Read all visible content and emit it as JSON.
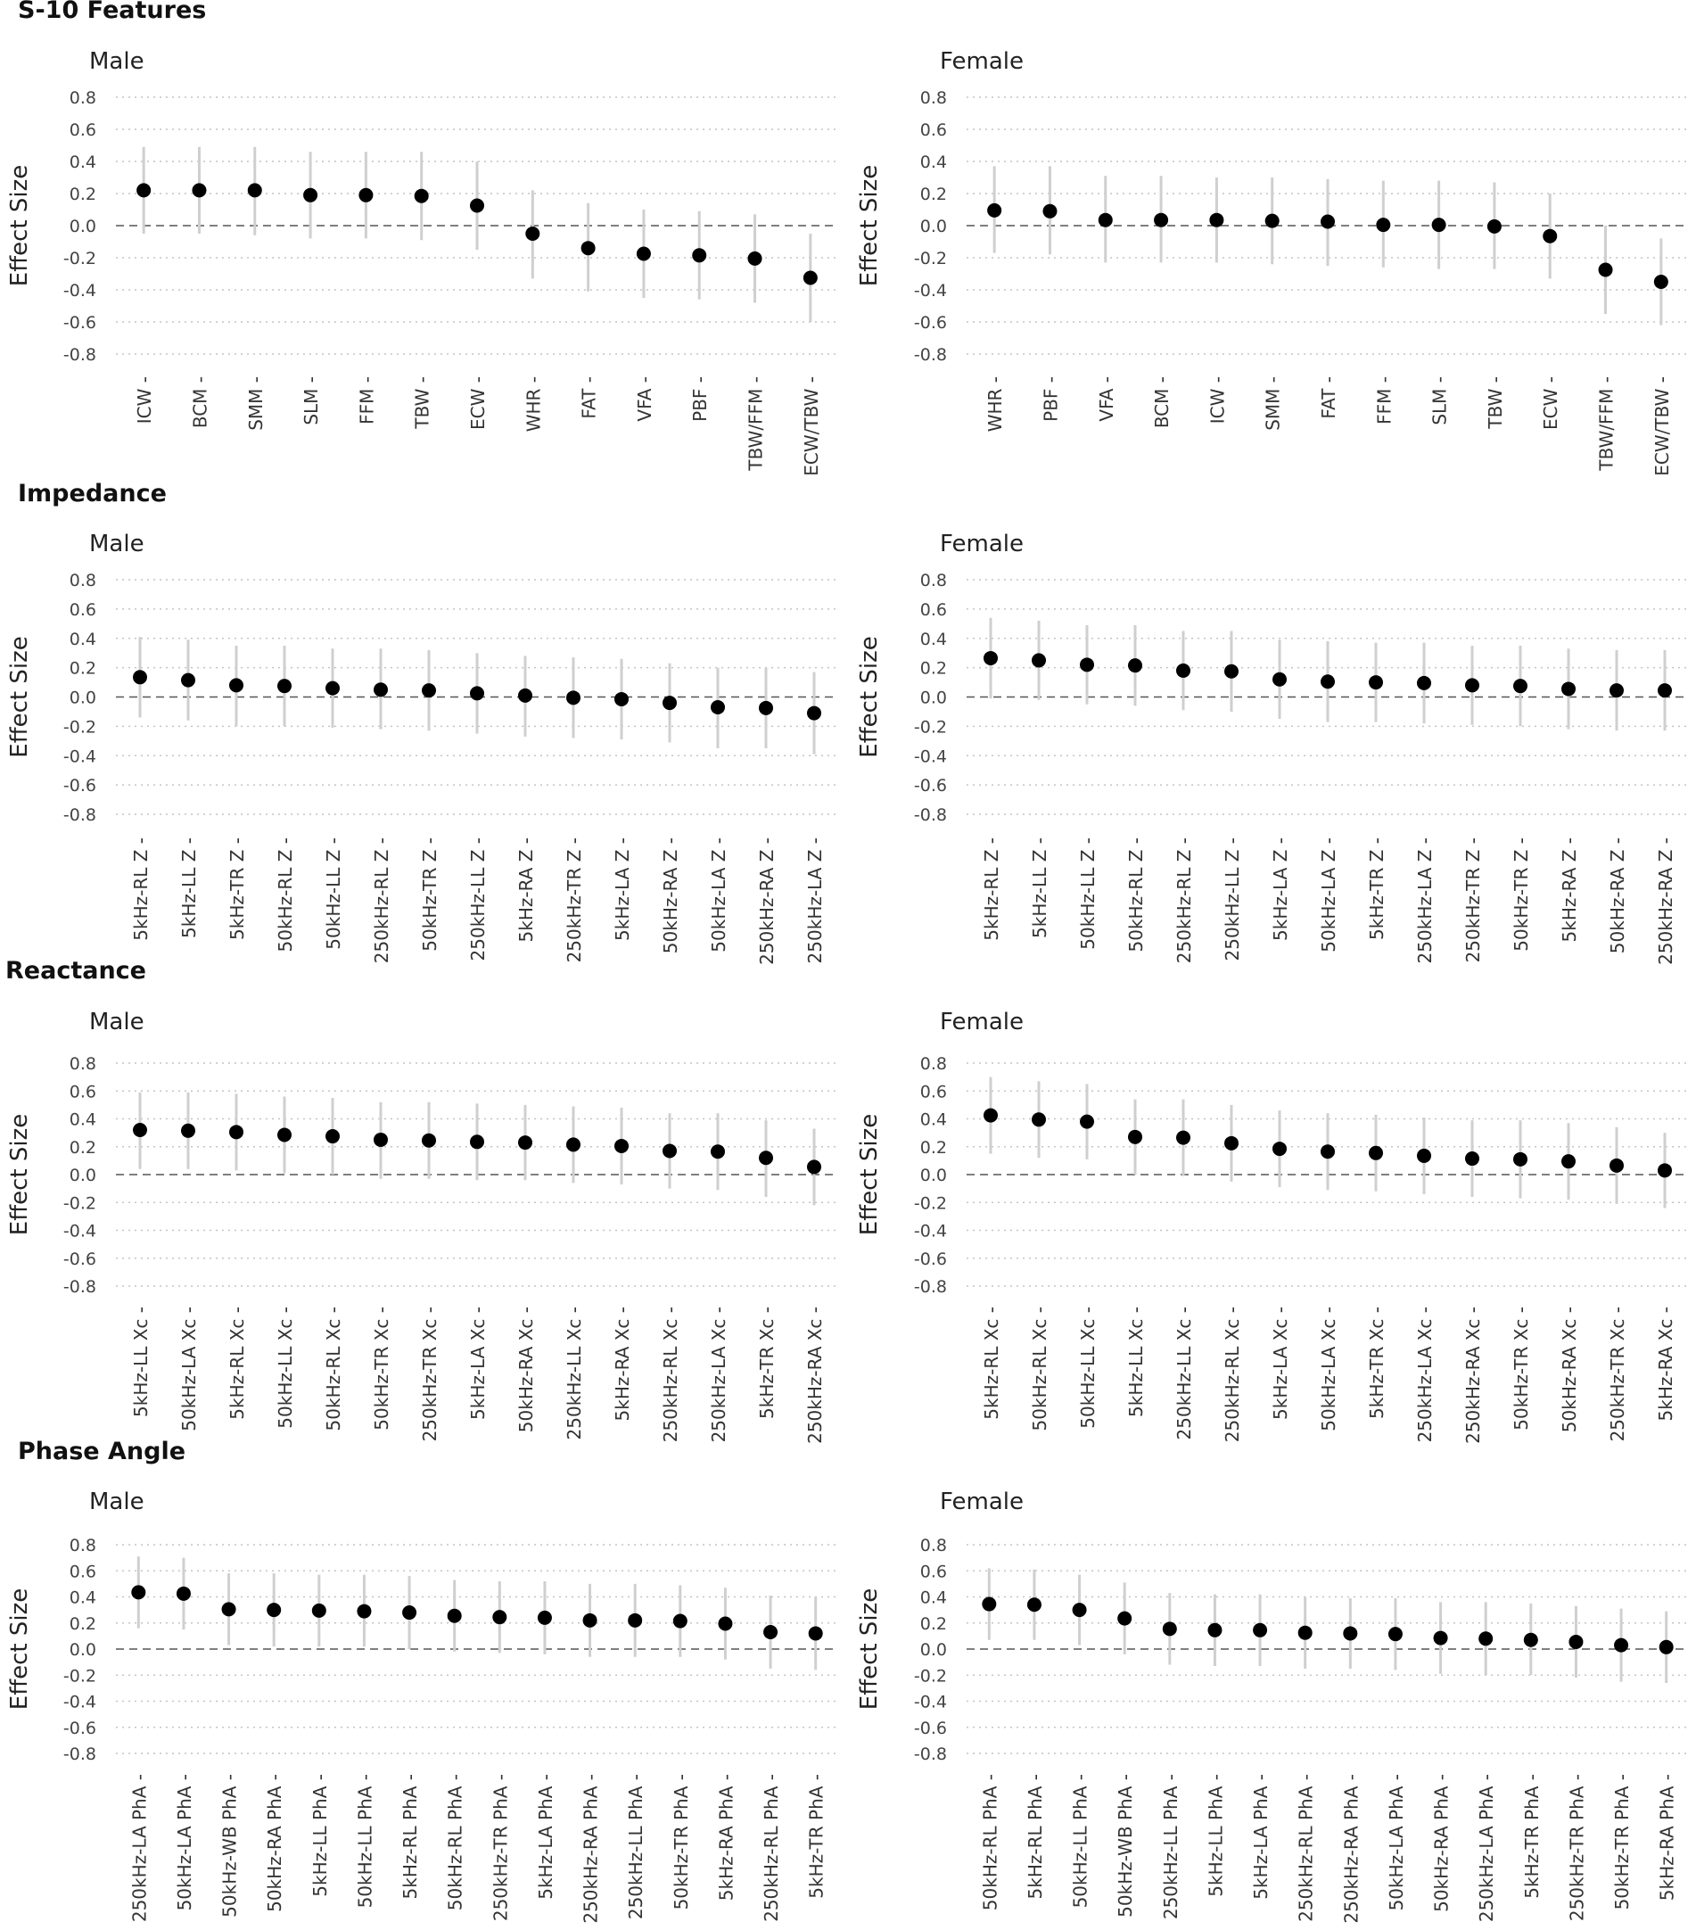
{
  "figure": {
    "sections": [
      {
        "title": "S-10 Features"
      },
      {
        "title": "Impedance"
      },
      {
        "title": "Reactance"
      },
      {
        "title": "Phase Angle"
      }
    ]
  },
  "chart_data": [
    {
      "type": "scatter",
      "section": "S-10 Features",
      "title": "Male",
      "ylabel": "Effect Size",
      "ylim": [
        -0.8,
        0.8
      ],
      "yticks": [
        0.8,
        0.6,
        0.4,
        0.2,
        0.0,
        -0.2,
        -0.4,
        -0.6,
        -0.8
      ],
      "grid": "dotted horizontal",
      "reference_line": 0,
      "categories": [
        "ICW",
        "BCM",
        "SMM",
        "SLM",
        "FFM",
        "TBW",
        "ECW",
        "WHR",
        "FAT",
        "VFA",
        "PBF",
        "TBW/FFM",
        "ECW/TBW"
      ],
      "values": [
        0.22,
        0.22,
        0.22,
        0.19,
        0.19,
        0.185,
        0.125,
        -0.05,
        -0.14,
        -0.175,
        -0.185,
        -0.205,
        -0.325
      ],
      "lower": [
        -0.05,
        -0.05,
        -0.06,
        -0.08,
        -0.08,
        -0.09,
        -0.15,
        -0.33,
        -0.41,
        -0.45,
        -0.46,
        -0.48,
        -0.6
      ],
      "upper": [
        0.49,
        0.49,
        0.49,
        0.46,
        0.46,
        0.46,
        0.4,
        0.22,
        0.14,
        0.1,
        0.09,
        0.07,
        -0.05
      ]
    },
    {
      "type": "scatter",
      "section": "S-10 Features",
      "title": "Female",
      "ylabel": "Effect Size",
      "ylim": [
        -0.8,
        0.8
      ],
      "yticks": [
        0.8,
        0.6,
        0.4,
        0.2,
        0.0,
        -0.2,
        -0.4,
        -0.6,
        -0.8
      ],
      "grid": "dotted horizontal",
      "reference_line": 0,
      "categories": [
        "WHR",
        "PBF",
        "VFA",
        "BCM",
        "ICW",
        "SMM",
        "FAT",
        "FFM",
        "SLM",
        "TBW",
        "ECW",
        "TBW/FFM",
        "ECW/TBW"
      ],
      "values": [
        0.095,
        0.09,
        0.035,
        0.035,
        0.035,
        0.03,
        0.025,
        0.005,
        0.005,
        -0.005,
        -0.065,
        -0.275,
        -0.35
      ],
      "lower": [
        -0.17,
        -0.18,
        -0.23,
        -0.23,
        -0.23,
        -0.24,
        -0.25,
        -0.26,
        -0.27,
        -0.27,
        -0.33,
        -0.55,
        -0.62
      ],
      "upper": [
        0.37,
        0.37,
        0.31,
        0.31,
        0.3,
        0.3,
        0.29,
        0.28,
        0.28,
        0.27,
        0.2,
        0.0,
        -0.08
      ]
    },
    {
      "type": "scatter",
      "section": "Impedance",
      "title": "Male",
      "ylabel": "Effect Size",
      "ylim": [
        -0.8,
        0.8
      ],
      "yticks": [
        0.8,
        0.6,
        0.4,
        0.2,
        0.0,
        -0.2,
        -0.4,
        -0.6,
        -0.8
      ],
      "grid": "dotted horizontal",
      "reference_line": 0,
      "categories": [
        "5kHz-RL Z",
        "5kHz-LL Z",
        "5kHz-TR Z",
        "50kHz-RL Z",
        "50kHz-LL Z",
        "250kHz-RL Z",
        "50kHz-TR Z",
        "250kHz-LL Z",
        "5kHz-RA Z",
        "250kHz-TR Z",
        "5kHz-LA Z",
        "50kHz-RA Z",
        "50kHz-LA Z",
        "250kHz-RA Z",
        "250kHz-LA Z"
      ],
      "values": [
        0.135,
        0.115,
        0.08,
        0.075,
        0.06,
        0.05,
        0.045,
        0.025,
        0.01,
        -0.005,
        -0.015,
        -0.04,
        -0.07,
        -0.075,
        -0.11
      ],
      "lower": [
        -0.14,
        -0.16,
        -0.2,
        -0.2,
        -0.21,
        -0.22,
        -0.23,
        -0.25,
        -0.27,
        -0.28,
        -0.29,
        -0.31,
        -0.35,
        -0.35,
        -0.39
      ],
      "upper": [
        0.41,
        0.39,
        0.35,
        0.35,
        0.33,
        0.33,
        0.32,
        0.3,
        0.28,
        0.27,
        0.26,
        0.23,
        0.2,
        0.2,
        0.17
      ]
    },
    {
      "type": "scatter",
      "section": "Impedance",
      "title": "Female",
      "ylabel": "Effect Size",
      "ylim": [
        -0.8,
        0.8
      ],
      "yticks": [
        0.8,
        0.6,
        0.4,
        0.2,
        0.0,
        -0.2,
        -0.4,
        -0.6,
        -0.8
      ],
      "grid": "dotted horizontal",
      "reference_line": 0,
      "categories": [
        "5kHz-RL Z",
        "5kHz-LL Z",
        "50kHz-LL Z",
        "50kHz-RL Z",
        "250kHz-RL Z",
        "250kHz-LL Z",
        "5kHz-LA Z",
        "50kHz-LA Z",
        "5kHz-TR Z",
        "250kHz-LA Z",
        "250kHz-TR Z",
        "50kHz-TR Z",
        "5kHz-RA Z",
        "50kHz-RA Z",
        "250kHz-RA Z"
      ],
      "values": [
        0.265,
        0.25,
        0.22,
        0.215,
        0.18,
        0.175,
        0.12,
        0.105,
        0.1,
        0.095,
        0.08,
        0.075,
        0.055,
        0.045,
        0.045
      ],
      "lower": [
        -0.01,
        -0.02,
        -0.05,
        -0.06,
        -0.09,
        -0.1,
        -0.15,
        -0.17,
        -0.17,
        -0.18,
        -0.19,
        -0.2,
        -0.22,
        -0.23,
        -0.23
      ],
      "upper": [
        0.54,
        0.52,
        0.49,
        0.49,
        0.45,
        0.45,
        0.39,
        0.38,
        0.37,
        0.37,
        0.35,
        0.35,
        0.33,
        0.32,
        0.32
      ]
    },
    {
      "type": "scatter",
      "section": "Reactance",
      "title": "Male",
      "ylabel": "Effect Size",
      "ylim": [
        -0.8,
        0.8
      ],
      "yticks": [
        0.8,
        0.6,
        0.4,
        0.2,
        0.0,
        -0.2,
        -0.4,
        -0.6,
        -0.8
      ],
      "grid": "dotted horizontal",
      "reference_line": 0,
      "categories": [
        "5kHz-LL Xc",
        "50kHz-LA Xc",
        "5kHz-RL Xc",
        "50kHz-LL Xc",
        "50kHz-RL Xc",
        "50kHz-TR Xc",
        "250kHz-TR Xc",
        "5kHz-LA Xc",
        "50kHz-RA Xc",
        "250kHz-LL Xc",
        "5kHz-RA Xc",
        "250kHz-RL Xc",
        "250kHz-LA Xc",
        "5kHz-TR Xc",
        "250kHz-RA Xc"
      ],
      "values": [
        0.32,
        0.315,
        0.305,
        0.285,
        0.275,
        0.25,
        0.245,
        0.235,
        0.23,
        0.215,
        0.205,
        0.17,
        0.165,
        0.12,
        0.055
      ],
      "lower": [
        0.04,
        0.04,
        0.03,
        0.01,
        0.0,
        -0.03,
        -0.03,
        -0.04,
        -0.04,
        -0.06,
        -0.07,
        -0.1,
        -0.11,
        -0.16,
        -0.22
      ],
      "upper": [
        0.59,
        0.59,
        0.58,
        0.56,
        0.55,
        0.52,
        0.52,
        0.51,
        0.5,
        0.49,
        0.48,
        0.44,
        0.44,
        0.39,
        0.33
      ]
    },
    {
      "type": "scatter",
      "section": "Reactance",
      "title": "Female",
      "ylabel": "Effect Size",
      "ylim": [
        -0.8,
        0.8
      ],
      "yticks": [
        0.8,
        0.6,
        0.4,
        0.2,
        0.0,
        -0.2,
        -0.4,
        -0.6,
        -0.8
      ],
      "grid": "dotted horizontal",
      "reference_line": 0,
      "categories": [
        "5kHz-RL Xc",
        "50kHz-RL Xc",
        "50kHz-LL Xc",
        "5kHz-LL Xc",
        "250kHz-LL Xc",
        "250kHz-RL Xc",
        "5kHz-LA Xc",
        "50kHz-LA Xc",
        "5kHz-TR Xc",
        "250kHz-LA Xc",
        "250kHz-RA Xc",
        "50kHz-TR Xc",
        "50kHz-RA Xc",
        "250kHz-TR Xc",
        "5kHz-RA Xc"
      ],
      "values": [
        0.425,
        0.395,
        0.38,
        0.27,
        0.265,
        0.225,
        0.185,
        0.165,
        0.155,
        0.135,
        0.115,
        0.11,
        0.095,
        0.065,
        0.03
      ],
      "lower": [
        0.15,
        0.12,
        0.11,
        0.0,
        -0.01,
        -0.05,
        -0.09,
        -0.11,
        -0.12,
        -0.14,
        -0.16,
        -0.17,
        -0.18,
        -0.21,
        -0.24
      ],
      "upper": [
        0.7,
        0.67,
        0.65,
        0.54,
        0.54,
        0.5,
        0.46,
        0.44,
        0.43,
        0.41,
        0.39,
        0.39,
        0.37,
        0.34,
        0.3
      ]
    },
    {
      "type": "scatter",
      "section": "Phase Angle",
      "title": "Male",
      "ylabel": "Effect Size",
      "ylim": [
        -0.8,
        0.8
      ],
      "yticks": [
        0.8,
        0.6,
        0.4,
        0.2,
        0.0,
        -0.2,
        -0.4,
        -0.6,
        -0.8
      ],
      "grid": "dotted horizontal",
      "reference_line": 0,
      "categories": [
        "250kHz-LA PhA",
        "50kHz-LA PhA",
        "50kHz-WB PhA",
        "50kHz-RA PhA",
        "5kHz-LL PhA",
        "50kHz-LL PhA",
        "5kHz-RL PhA",
        "50kHz-RL PhA",
        "250kHz-TR PhA",
        "5kHz-LA PhA",
        "250kHz-RA PhA",
        "250kHz-LL PhA",
        "50kHz-TR PhA",
        "5kHz-RA PhA",
        "250kHz-RL PhA",
        "5kHz-TR PhA"
      ],
      "values": [
        0.435,
        0.425,
        0.305,
        0.3,
        0.295,
        0.29,
        0.28,
        0.255,
        0.245,
        0.24,
        0.22,
        0.22,
        0.215,
        0.195,
        0.13,
        0.12
      ],
      "lower": [
        0.16,
        0.15,
        0.03,
        0.02,
        0.02,
        0.02,
        0.0,
        -0.02,
        -0.03,
        -0.04,
        -0.06,
        -0.06,
        -0.06,
        -0.08,
        -0.15,
        -0.16
      ],
      "upper": [
        0.71,
        0.7,
        0.58,
        0.58,
        0.57,
        0.57,
        0.56,
        0.53,
        0.52,
        0.52,
        0.5,
        0.5,
        0.49,
        0.47,
        0.41,
        0.4
      ]
    },
    {
      "type": "scatter",
      "section": "Phase Angle",
      "title": "Female",
      "ylabel": "Effect Size",
      "ylim": [
        -0.8,
        0.8
      ],
      "yticks": [
        0.8,
        0.6,
        0.4,
        0.2,
        0.0,
        -0.2,
        -0.4,
        -0.6,
        -0.8
      ],
      "grid": "dotted horizontal",
      "reference_line": 0,
      "categories": [
        "50kHz-RL PhA",
        "5kHz-RL PhA",
        "50kHz-LL PhA",
        "50kHz-WB PhA",
        "250kHz-LL PhA",
        "5kHz-LL PhA",
        "5kHz-LA PhA",
        "250kHz-RL PhA",
        "250kHz-RA PhA",
        "50kHz-LA PhA",
        "50kHz-RA PhA",
        "250kHz-LA PhA",
        "5kHz-TR PhA",
        "250kHz-TR PhA",
        "50kHz-TR PhA",
        "5kHz-RA PhA"
      ],
      "values": [
        0.345,
        0.34,
        0.3,
        0.235,
        0.155,
        0.145,
        0.145,
        0.125,
        0.12,
        0.115,
        0.085,
        0.08,
        0.07,
        0.055,
        0.03,
        0.015
      ],
      "lower": [
        0.07,
        0.07,
        0.03,
        -0.04,
        -0.12,
        -0.13,
        -0.13,
        -0.15,
        -0.15,
        -0.16,
        -0.19,
        -0.2,
        -0.2,
        -0.22,
        -0.25,
        -0.26
      ],
      "upper": [
        0.62,
        0.61,
        0.57,
        0.51,
        0.43,
        0.42,
        0.42,
        0.4,
        0.39,
        0.39,
        0.36,
        0.36,
        0.35,
        0.33,
        0.31,
        0.29
      ]
    }
  ]
}
